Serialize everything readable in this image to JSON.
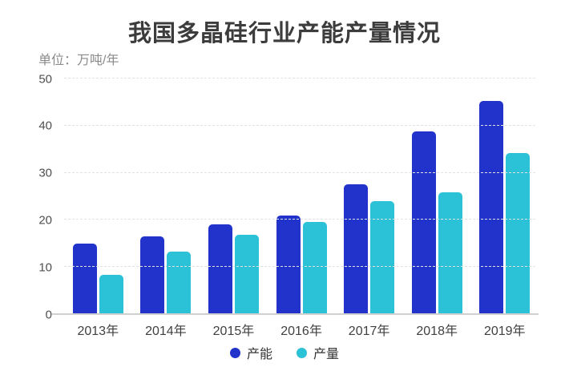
{
  "page": {
    "title": "我国多晶硅行业产能产量情况",
    "unit_label": "单位：万吨/年"
  },
  "chart_data": {
    "type": "bar",
    "title": "我国多晶硅行业产能产量情况",
    "unit": "万吨/年",
    "categories": [
      "2013年",
      "2014年",
      "2015年",
      "2016年",
      "2017年",
      "2018年",
      "2019年"
    ],
    "series": [
      {
        "name": "产能",
        "color": "#2133cb",
        "values": [
          15,
          16.5,
          19,
          21,
          27.5,
          38.8,
          45.2
        ]
      },
      {
        "name": "产量",
        "color": "#2bc1d7",
        "values": [
          8.3,
          13.2,
          16.9,
          19.5,
          24,
          25.9,
          34.2
        ]
      }
    ],
    "ylim": [
      0,
      50
    ],
    "yticks": [
      0,
      10,
      20,
      30,
      40,
      50
    ],
    "grid": true,
    "gridline_color": "#e2e2e2",
    "axis_line_color": "#cfcfcf",
    "legend_position": "bottom"
  }
}
